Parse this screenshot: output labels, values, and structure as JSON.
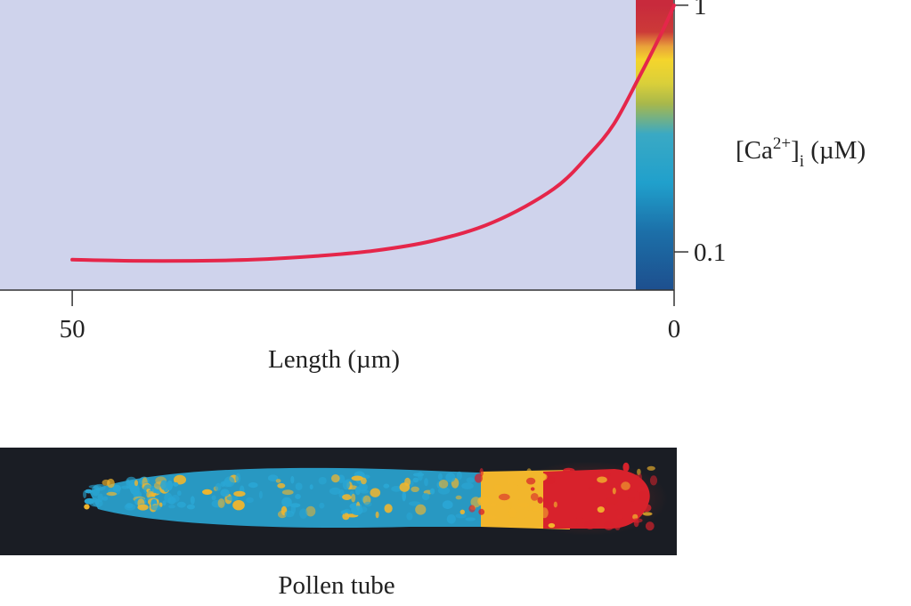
{
  "chart_data": {
    "type": "line",
    "title": "",
    "xlabel": "Length (µm)",
    "ylabel": "[Ca2+]i (µM)",
    "ylabel_parts": {
      "base": "[Ca",
      "sup": "2+",
      "close": "]",
      "sub": "i",
      "unit": " (µM)"
    },
    "x_axis": {
      "reversed": true,
      "xlim": [
        0,
        56
      ],
      "ticks": [
        50,
        0
      ],
      "tick_labels": [
        "50",
        "0"
      ]
    },
    "y_axis": {
      "scale": "log",
      "ylim": [
        0.07,
        1.05
      ],
      "ticks": [
        1,
        0.1
      ],
      "tick_labels": [
        "1",
        "0.1"
      ]
    },
    "grid": false,
    "legend": "none",
    "series": [
      {
        "x": [
          50,
          45,
          40,
          35,
          30,
          25,
          20,
          15,
          10,
          7,
          5,
          3,
          1,
          0
        ],
        "y": [
          0.093,
          0.092,
          0.092,
          0.093,
          0.096,
          0.101,
          0.111,
          0.132,
          0.18,
          0.25,
          0.33,
          0.5,
          0.78,
          1.0
        ]
      }
    ],
    "line_color": "#e5264a",
    "plot_background": "#cfd3ec",
    "colorbar": {
      "axis": "y",
      "stops": [
        {
          "y": 1.0,
          "color": "#c82a3c"
        },
        {
          "y": 0.78,
          "color": "#cc3a38"
        },
        {
          "y": 0.68,
          "color": "#e9a23a"
        },
        {
          "y": 0.6,
          "color": "#f4d52c"
        },
        {
          "y": 0.48,
          "color": "#d9cf3a"
        },
        {
          "y": 0.4,
          "color": "#a9b84a"
        },
        {
          "y": 0.3,
          "color": "#3aa9c4"
        },
        {
          "y": 0.19,
          "color": "#20a0cc"
        },
        {
          "y": 0.12,
          "color": "#1c6fa8"
        },
        {
          "y": 0.07,
          "color": "#1d4f8e"
        }
      ]
    }
  },
  "micrograph": {
    "caption": "Pollen tube",
    "background": "#1a1d24",
    "colors": {
      "tip": "#d8222c",
      "zone": "#f2b62c",
      "shank": "#2aa6d4"
    }
  }
}
